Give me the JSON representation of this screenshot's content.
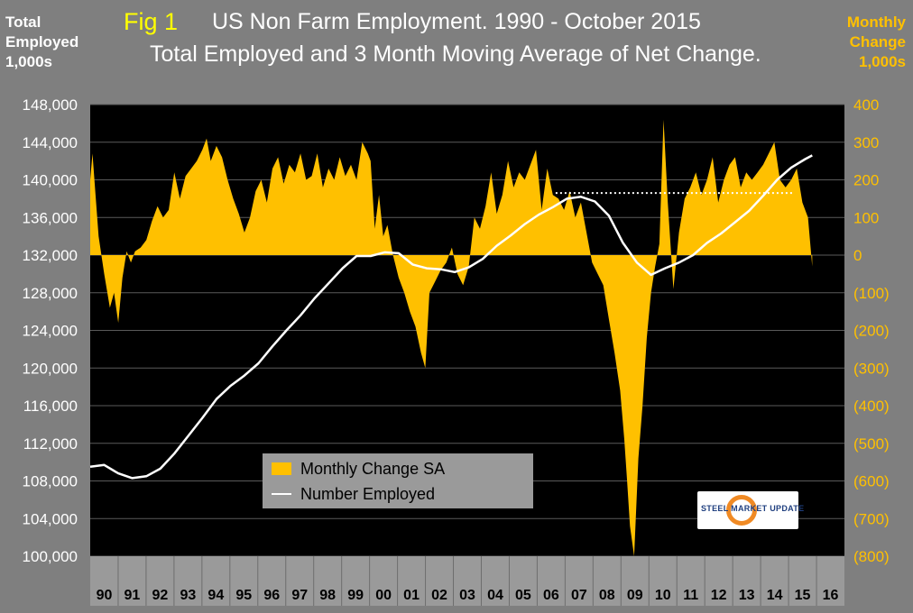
{
  "titles": {
    "fig": "Fig 1",
    "line1": "US Non Farm Employment. 1990 - October 2015",
    "line2": "Total Employed and 3 Month Moving Average of Net Change.",
    "left_axis_title": [
      "Total",
      "Employed",
      "1,000s"
    ],
    "right_axis_title": [
      "Monthly",
      "Change",
      "1,000s"
    ]
  },
  "legend": {
    "monthly_change": "Monthly Change SA",
    "number_employed": "Number Employed"
  },
  "logo": {
    "text": "STEEL MARKET UPDATE"
  },
  "colors": {
    "background": "#7f7f7f",
    "plot_background": "#000000",
    "bars": "#ffc000",
    "line": "#ffffff",
    "left_axis_text": "#ffffff",
    "right_axis_text": "#ffc000",
    "fig_label": "#ffff00"
  },
  "chart_data": {
    "type": "area",
    "grid": true,
    "legend_position": "bottom-center",
    "x_axis": {
      "labels": [
        "90",
        "91",
        "92",
        "93",
        "94",
        "95",
        "96",
        "97",
        "98",
        "99",
        "00",
        "01",
        "02",
        "03",
        "04",
        "05",
        "06",
        "07",
        "08",
        "09",
        "10",
        "11",
        "12",
        "13",
        "14",
        "15",
        "16"
      ],
      "range": [
        1990,
        2016.9
      ]
    },
    "y_left": {
      "range": [
        100000,
        148000
      ],
      "ticks": [
        "100,000",
        "104,000",
        "108,000",
        "112,000",
        "116,000",
        "120,000",
        "124,000",
        "128,000",
        "132,000",
        "136,000",
        "140,000",
        "144,000",
        "148,000"
      ]
    },
    "y_right": {
      "range": [
        -800,
        400
      ],
      "ticks": [
        "(800)",
        "(700)",
        "(600)",
        "(500)",
        "(400)",
        "(300)",
        "(200)",
        "(100)",
        "0",
        "100",
        "200",
        "300",
        "400"
      ]
    },
    "series": [
      {
        "name": "Monthly Change SA",
        "type": "area",
        "axis": "right",
        "x": [
          1990.0,
          1990.08,
          1990.2,
          1990.3,
          1990.5,
          1990.7,
          1990.85,
          1991.0,
          1991.15,
          1991.3,
          1991.45,
          1991.6,
          1991.8,
          1992.0,
          1992.2,
          1992.4,
          1992.6,
          1992.8,
          1993.0,
          1993.2,
          1993.4,
          1993.6,
          1993.8,
          1994.0,
          1994.15,
          1994.3,
          1994.5,
          1994.7,
          1994.9,
          1995.1,
          1995.3,
          1995.5,
          1995.7,
          1995.9,
          1996.1,
          1996.3,
          1996.5,
          1996.7,
          1996.9,
          1997.1,
          1997.3,
          1997.5,
          1997.7,
          1997.9,
          1998.1,
          1998.3,
          1998.5,
          1998.7,
          1998.9,
          1999.1,
          1999.3,
          1999.5,
          1999.7,
          1999.9,
          2000.0,
          2000.15,
          2000.3,
          2000.45,
          2000.6,
          2000.8,
          2001.0,
          2001.2,
          2001.4,
          2001.6,
          2001.8,
          2001.95,
          2002.1,
          2002.3,
          2002.5,
          2002.7,
          2002.9,
          2003.1,
          2003.3,
          2003.5,
          2003.7,
          2003.9,
          2004.1,
          2004.3,
          2004.5,
          2004.7,
          2004.9,
          2005.1,
          2005.3,
          2005.5,
          2005.7,
          2005.9,
          2006.1,
          2006.3,
          2006.5,
          2006.7,
          2006.9,
          2007.1,
          2007.3,
          2007.5,
          2007.7,
          2007.9,
          2008.1,
          2008.3,
          2008.5,
          2008.7,
          2008.9,
          2009.05,
          2009.15,
          2009.25,
          2009.4,
          2009.55,
          2009.7,
          2009.85,
          2010.0,
          2010.15,
          2010.3,
          2010.45,
          2010.6,
          2010.8,
          2011.0,
          2011.2,
          2011.4,
          2011.6,
          2011.8,
          2012.0,
          2012.2,
          2012.4,
          2012.6,
          2012.8,
          2013.0,
          2013.2,
          2013.4,
          2013.6,
          2013.8,
          2014.0,
          2014.2,
          2014.4,
          2014.6,
          2014.8,
          2015.0,
          2015.2,
          2015.4,
          2015.6,
          2015.75
        ],
        "values": [
          200,
          270,
          150,
          50,
          -50,
          -140,
          -100,
          -180,
          -60,
          10,
          -20,
          10,
          20,
          40,
          90,
          130,
          100,
          120,
          220,
          150,
          210,
          230,
          250,
          280,
          310,
          250,
          290,
          260,
          200,
          150,
          110,
          60,
          100,
          170,
          200,
          140,
          230,
          260,
          190,
          240,
          220,
          270,
          200,
          210,
          270,
          180,
          230,
          200,
          260,
          210,
          240,
          200,
          300,
          270,
          250,
          70,
          160,
          50,
          80,
          0,
          -60,
          -100,
          -150,
          -190,
          -260,
          -300,
          -100,
          -70,
          -40,
          -20,
          20,
          -50,
          -80,
          -30,
          100,
          70,
          130,
          220,
          110,
          160,
          250,
          180,
          220,
          200,
          240,
          280,
          120,
          230,
          160,
          150,
          120,
          170,
          100,
          140,
          60,
          -20,
          -50,
          -80,
          -170,
          -260,
          -360,
          -490,
          -600,
          -720,
          -800,
          -540,
          -400,
          -220,
          -100,
          -30,
          30,
          360,
          140,
          -90,
          60,
          150,
          180,
          220,
          160,
          200,
          260,
          140,
          200,
          240,
          260,
          180,
          220,
          200,
          220,
          240,
          270,
          300,
          200,
          180,
          200,
          230,
          140,
          100,
          -30
        ]
      },
      {
        "name": "Number Employed",
        "type": "line",
        "axis": "left",
        "x": [
          1990.0,
          1990.5,
          1991.0,
          1991.5,
          1992.0,
          1992.5,
          1993.0,
          1993.5,
          1994.0,
          1994.5,
          1995.0,
          1995.5,
          1996.0,
          1996.5,
          1997.0,
          1997.5,
          1998.0,
          1998.5,
          1999.0,
          1999.5,
          2000.0,
          2000.5,
          2001.0,
          2001.5,
          2002.0,
          2002.5,
          2003.0,
          2003.5,
          2004.0,
          2004.5,
          2005.0,
          2005.5,
          2006.0,
          2006.5,
          2007.0,
          2007.5,
          2008.0,
          2008.5,
          2009.0,
          2009.5,
          2010.0,
          2010.5,
          2011.0,
          2011.5,
          2012.0,
          2012.5,
          2013.0,
          2013.5,
          2014.0,
          2014.5,
          2015.0,
          2015.5,
          2015.75
        ],
        "values": [
          109500,
          109700,
          108800,
          108300,
          108500,
          109300,
          110900,
          112800,
          114700,
          116700,
          118100,
          119200,
          120500,
          122300,
          124000,
          125600,
          127400,
          129000,
          130600,
          131900,
          131900,
          132300,
          132200,
          131000,
          130600,
          130500,
          130200,
          130700,
          131600,
          133000,
          134100,
          135300,
          136300,
          137100,
          138000,
          138200,
          137700,
          136200,
          133300,
          131200,
          129900,
          130600,
          131200,
          132000,
          133300,
          134300,
          135500,
          136700,
          138300,
          140000,
          141300,
          142200,
          142600
        ]
      }
    ],
    "annotations": [
      {
        "type": "dotted-horizontal-line",
        "axis": "right",
        "value": 165,
        "from": 2006.6,
        "to": 2015.1
      }
    ]
  }
}
